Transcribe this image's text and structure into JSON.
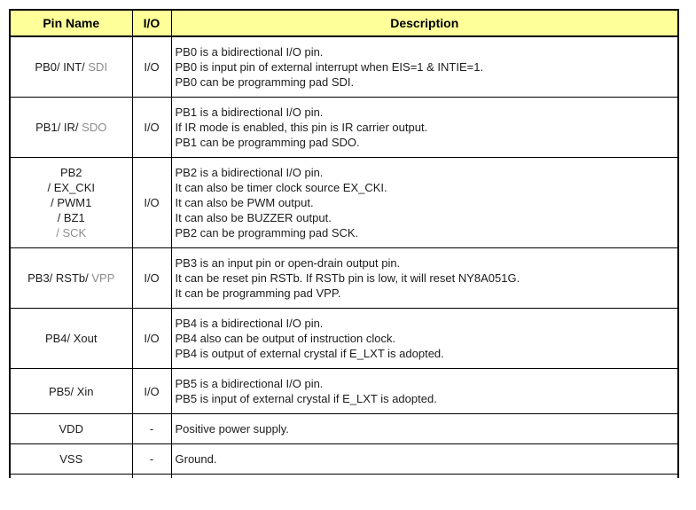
{
  "page": {
    "background": "#ffffff"
  },
  "table": {
    "name": "pin-description-table",
    "border_color": "#000000",
    "muted_color": "#8c8c8c",
    "header": {
      "bg": "#ffff99",
      "columns": [
        "Pin Name",
        "I/O",
        "Description"
      ]
    },
    "rows": [
      {
        "pin_lines": [
          [
            {
              "text": "PB0/ INT/ "
            },
            {
              "text": "SDI",
              "muted": true
            }
          ]
        ],
        "io": "I/O",
        "description_lines": [
          "PB0 is a bidirectional I/O pin.",
          "PB0 is input pin of external interrupt when EIS=1 & INTIE=1.",
          "PB0 can be programming pad SDI."
        ]
      },
      {
        "pin_lines": [
          [
            {
              "text": "PB1/ IR/ "
            },
            {
              "text": "SDO",
              "muted": true
            }
          ]
        ],
        "io": "I/O",
        "description_lines": [
          "PB1 is a bidirectional I/O pin.",
          "If IR mode is enabled, this pin is IR carrier output.",
          "PB1 can be programming pad SDO."
        ]
      },
      {
        "pin_lines": [
          [
            {
              "text": "PB2"
            }
          ],
          [
            {
              "text": "/ EX_CKI"
            }
          ],
          [
            {
              "text": "/ PWM1"
            }
          ],
          [
            {
              "text": "/ BZ1"
            }
          ],
          [
            {
              "text": "/ SCK",
              "muted": true
            }
          ]
        ],
        "io": "I/O",
        "description_lines": [
          "PB2 is a bidirectional I/O pin.",
          "It can also be timer clock source EX_CKI.",
          "It can also be PWM output.",
          "It can also be BUZZER output.",
          "PB2 can be programming pad SCK."
        ]
      },
      {
        "pin_lines": [
          [
            {
              "text": "PB3/ RSTb/ "
            },
            {
              "text": "VPP",
              "muted": true
            }
          ]
        ],
        "io": "I/O",
        "description_lines": [
          "PB3 is an input pin or open-drain output pin.",
          "It can be reset pin RSTb. If RSTb pin is low, it will reset NY8A051G.",
          "It can be programming pad VPP."
        ]
      },
      {
        "pin_lines": [
          [
            {
              "text": "PB4/ Xout"
            }
          ]
        ],
        "io": "I/O",
        "description_lines": [
          "PB4 is a bidirectional I/O pin.",
          "PB4 also can be output of instruction clock.",
          "PB4 is output of external crystal if E_LXT is adopted."
        ]
      },
      {
        "pin_lines": [
          [
            {
              "text": "PB5/ Xin"
            }
          ]
        ],
        "io": "I/O",
        "description_lines": [
          "PB5 is a bidirectional I/O pin.",
          "PB5 is input of external crystal if E_LXT is adopted."
        ]
      },
      {
        "pin_lines": [
          [
            {
              "text": "VDD"
            }
          ]
        ],
        "io": "-",
        "description_lines": [
          "Positive power supply."
        ]
      },
      {
        "pin_lines": [
          [
            {
              "text": "VSS"
            }
          ]
        ],
        "io": "-",
        "description_lines": [
          "Ground."
        ]
      }
    ]
  }
}
